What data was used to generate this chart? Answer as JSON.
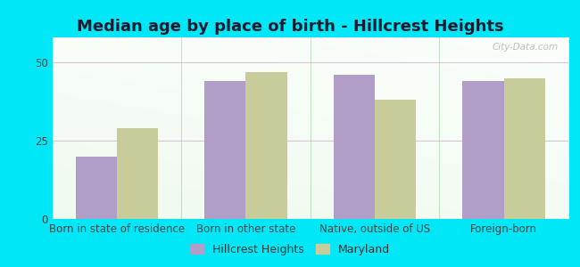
{
  "title": "Median age by place of birth - Hillcrest Heights",
  "categories": [
    "Born in state of residence",
    "Born in other state",
    "Native, outside of US",
    "Foreign-born"
  ],
  "hillcrest_values": [
    20,
    44,
    46,
    44
  ],
  "maryland_values": [
    29,
    47,
    38,
    45
  ],
  "hillcrest_color": "#b09ec8",
  "maryland_color": "#c8cc9a",
  "background_outer": "#00e8f8",
  "yticks": [
    0,
    25,
    50
  ],
  "ylim": [
    0,
    58
  ],
  "legend_labels": [
    "Hillcrest Heights",
    "Maryland"
  ],
  "bar_width": 0.32,
  "title_fontsize": 13,
  "axis_label_fontsize": 8.5,
  "legend_fontsize": 9,
  "watermark_text": "City-Data.com",
  "grid_color": "#d8c8d8",
  "separator_color": "#aaddaa"
}
